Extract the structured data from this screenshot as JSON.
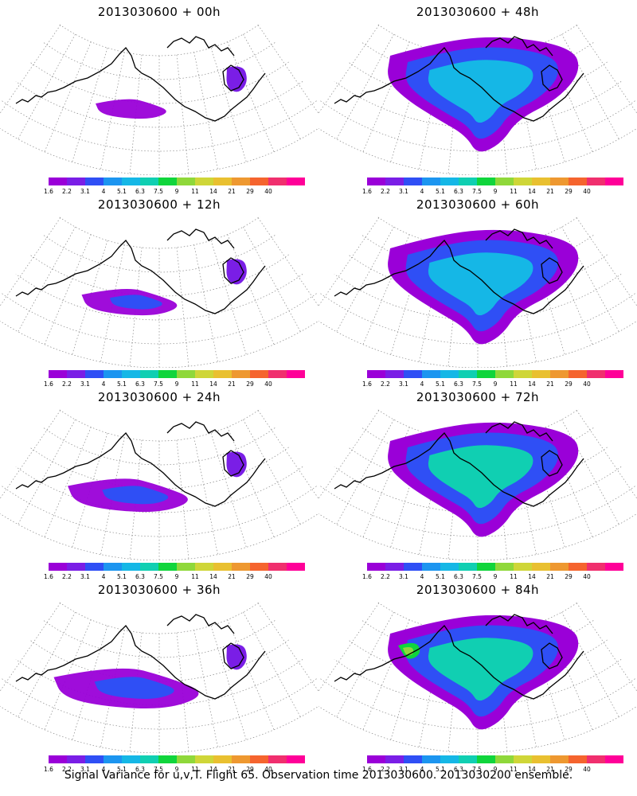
{
  "colorbar": {
    "colors": [
      "#9a00d8",
      "#7a1ee6",
      "#2f4ff5",
      "#1c95f0",
      "#15b7e6",
      "#10cfb2",
      "#10d53c",
      "#8fd83a",
      "#cfd638",
      "#e9c030",
      "#ee9830",
      "#f5642e",
      "#f02f6e",
      "#ff0098"
    ],
    "labels": [
      "1.6",
      "2.2",
      "3.1",
      "4",
      "5.1",
      "6.3",
      "7.5",
      "9",
      "11",
      "14",
      "21",
      "29",
      "40"
    ]
  },
  "panels": [
    {
      "title": "2013030600 + 00h",
      "level": 0
    },
    {
      "title": "2013030600 + 48h",
      "level": 4
    },
    {
      "title": "2013030600 + 12h",
      "level": 1
    },
    {
      "title": "2013030600 + 60h",
      "level": 5
    },
    {
      "title": "2013030600 + 24h",
      "level": 2
    },
    {
      "title": "2013030600 + 72h",
      "level": 6
    },
    {
      "title": "2013030600 + 36h",
      "level": 3
    },
    {
      "title": "2013030600 + 84h",
      "level": 7
    }
  ],
  "caption": "Signal Variance for u,v,T. Flight 65. Observation time 2013030600. 2013030200 ensemble."
}
